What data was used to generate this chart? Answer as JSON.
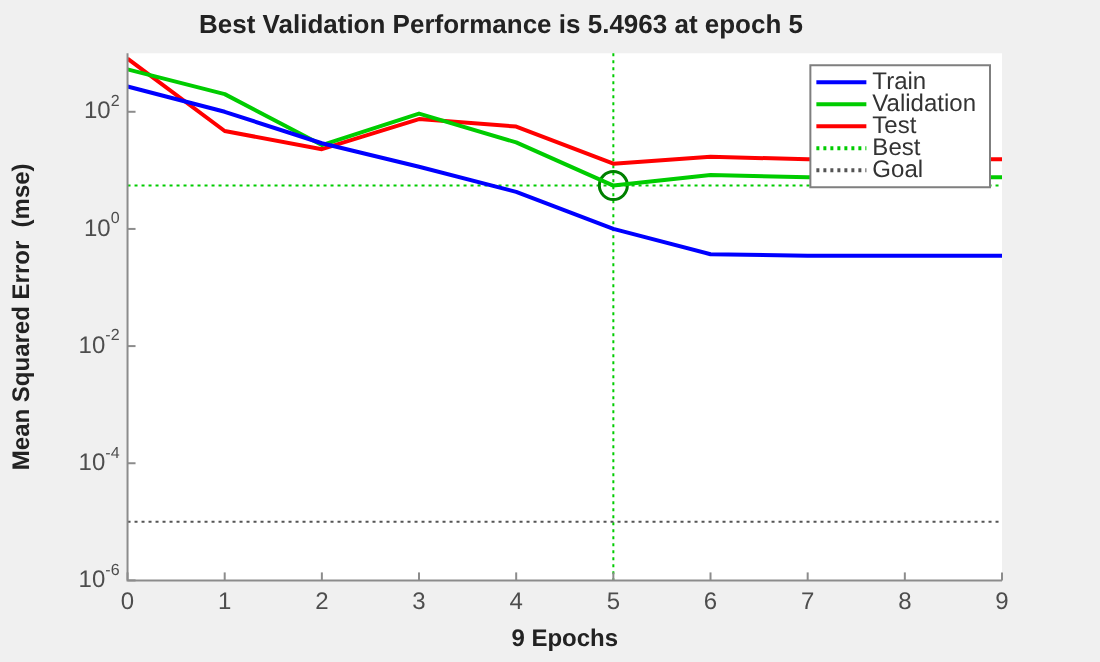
{
  "chart_data": {
    "type": "line",
    "title": "Best Validation Performance is 5.4963 at epoch 5",
    "xlabel": "9 Epochs",
    "ylabel": "Mean Squared Error  (mse)",
    "x": [
      0,
      1,
      2,
      3,
      4,
      5,
      6,
      7,
      8,
      9
    ],
    "series": [
      {
        "name": "Train",
        "color": "#0000ff",
        "values": [
          270,
          100,
          29,
          11.5,
          4.3,
          1.0,
          0.37,
          0.35,
          0.35,
          0.35
        ]
      },
      {
        "name": "Validation",
        "color": "#00cc00",
        "values": [
          530,
          200,
          27,
          93,
          30,
          5.4963,
          8.3,
          7.6,
          null,
          7.6
        ]
      },
      {
        "name": "Test",
        "color": "#ff0000",
        "values": [
          810,
          47,
          23,
          75,
          56,
          13,
          17,
          15.5,
          null,
          15.5
        ]
      },
      {
        "type": "scatter",
        "color": "#008000",
        "x": [
          5
        ],
        "values": [
          5.4963
        ],
        "marker": "circle"
      }
    ],
    "ref_lines": [
      {
        "axis": "x",
        "value": 5,
        "label": null,
        "color": "#00cc00",
        "line_style": "dotted"
      },
      {
        "axis": "y",
        "value": 5.4963,
        "label": "Best",
        "color": "#00cc00",
        "line_style": "dotted"
      },
      {
        "axis": "y",
        "value": 1e-05,
        "label": "Goal",
        "color": "#555555",
        "line_style": "dotted"
      }
    ],
    "log": "y",
    "xlim": [
      0,
      9
    ],
    "xticks": [
      0,
      1,
      2,
      3,
      4,
      5,
      6,
      7,
      8,
      9
    ],
    "ylim": [
      1e-06,
      1000
    ],
    "yticks": [
      {
        "value": 1e-06,
        "label": "10$^{-6}$"
      },
      {
        "value": 0.0001,
        "label": "10$^{-4}$"
      },
      {
        "value": 0.01,
        "label": "10$^{-2}$"
      },
      {
        "value": 1,
        "label": "10$^{0}$"
      },
      {
        "value": 100,
        "label": "10$^{2}$"
      }
    ],
    "grid": false,
    "legend": "top right",
    "marker": "none",
    "line_style": "solid"
  }
}
